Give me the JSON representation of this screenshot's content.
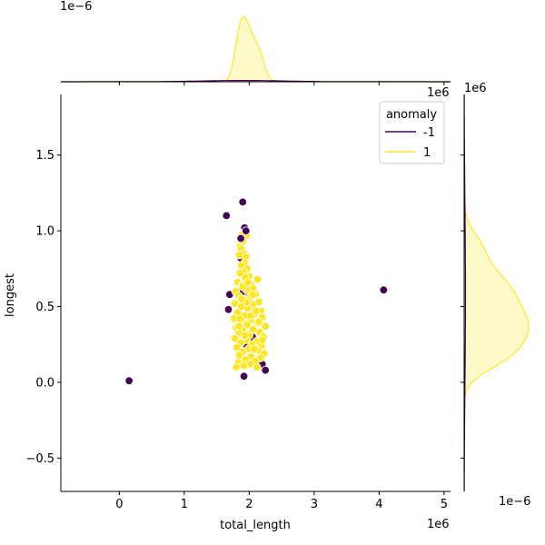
{
  "chart_data": {
    "type": "scatter",
    "subtype": "jointplot",
    "xlabel": "total_length",
    "ylabel": "longest",
    "x_scale_label": "1e6",
    "y_scale_label": "1e6",
    "xlim": [
      -0.9,
      5.1
    ],
    "ylim": [
      -0.72,
      1.9
    ],
    "x_ticks": [
      0,
      1,
      2,
      3,
      4,
      5
    ],
    "y_ticks": [
      -0.5,
      0.0,
      0.5,
      1.0,
      1.5
    ],
    "x_tick_labels": [
      "0",
      "1",
      "2",
      "3",
      "4",
      "5"
    ],
    "y_tick_labels": [
      "−0.5",
      "0.0",
      "0.5",
      "1.0",
      "1.5"
    ],
    "top_marginal_scale_label": "1e−6",
    "right_marginal_scale_label": "1e−6",
    "legend": {
      "title": "anomaly",
      "placement": "top-right",
      "entries": [
        {
          "label": "-1",
          "color": "#440154"
        },
        {
          "label": "1",
          "color": "#fde725"
        }
      ]
    },
    "series": [
      {
        "name": "-1",
        "color": "#440154",
        "points": [
          [
            0.15,
            0.01
          ],
          [
            4.07,
            0.61
          ],
          [
            1.65,
            1.1
          ],
          [
            1.9,
            1.19
          ],
          [
            1.93,
            1.02
          ],
          [
            1.95,
            1.0
          ],
          [
            1.87,
            0.95
          ],
          [
            1.87,
            0.82
          ],
          [
            1.7,
            0.58
          ],
          [
            1.68,
            0.48
          ],
          [
            1.85,
            0.6
          ],
          [
            1.96,
            0.59
          ],
          [
            1.91,
            0.6
          ],
          [
            2.2,
            0.12
          ],
          [
            2.25,
            0.08
          ],
          [
            1.92,
            0.04
          ],
          [
            2.05,
            0.3
          ],
          [
            1.95,
            0.25
          ]
        ]
      },
      {
        "name": "1",
        "color": "#fde725",
        "points": [
          [
            1.88,
            0.97
          ],
          [
            1.96,
            0.97
          ],
          [
            1.86,
            0.9
          ],
          [
            1.9,
            0.93
          ],
          [
            1.88,
            0.88
          ],
          [
            1.92,
            0.85
          ],
          [
            1.95,
            0.83
          ],
          [
            1.85,
            0.84
          ],
          [
            1.93,
            0.79
          ],
          [
            1.88,
            0.77
          ],
          [
            1.97,
            0.75
          ],
          [
            1.91,
            0.73
          ],
          [
            1.86,
            0.72
          ],
          [
            2.0,
            0.7
          ],
          [
            2.13,
            0.68
          ],
          [
            1.94,
            0.69
          ],
          [
            1.82,
            0.66
          ],
          [
            2.02,
            0.65
          ],
          [
            1.89,
            0.64
          ],
          [
            2.06,
            0.62
          ],
          [
            1.79,
            0.6
          ],
          [
            1.96,
            0.61
          ],
          [
            2.1,
            0.58
          ],
          [
            1.84,
            0.57
          ],
          [
            2.01,
            0.56
          ],
          [
            1.92,
            0.55
          ],
          [
            2.15,
            0.53
          ],
          [
            1.78,
            0.52
          ],
          [
            2.05,
            0.51
          ],
          [
            1.88,
            0.5
          ],
          [
            1.98,
            0.49
          ],
          [
            2.18,
            0.47
          ],
          [
            1.82,
            0.46
          ],
          [
            2.08,
            0.45
          ],
          [
            1.93,
            0.44
          ],
          [
            2.2,
            0.43
          ],
          [
            1.77,
            0.42
          ],
          [
            2.02,
            0.41
          ],
          [
            1.89,
            0.4
          ],
          [
            2.13,
            0.39
          ],
          [
            1.97,
            0.38
          ],
          [
            2.25,
            0.37
          ],
          [
            1.8,
            0.36
          ],
          [
            2.07,
            0.35
          ],
          [
            1.91,
            0.34
          ],
          [
            2.16,
            0.33
          ],
          [
            1.84,
            0.32
          ],
          [
            2.0,
            0.31
          ],
          [
            2.22,
            0.3
          ],
          [
            1.78,
            0.29
          ],
          [
            1.95,
            0.28
          ],
          [
            2.11,
            0.27
          ],
          [
            1.87,
            0.26
          ],
          [
            2.04,
            0.25
          ],
          [
            2.19,
            0.24
          ],
          [
            1.81,
            0.23
          ],
          [
            1.99,
            0.22
          ],
          [
            2.14,
            0.21
          ],
          [
            1.9,
            0.2
          ],
          [
            2.23,
            0.19
          ],
          [
            1.85,
            0.18
          ],
          [
            2.03,
            0.17
          ],
          [
            2.17,
            0.16
          ],
          [
            1.94,
            0.15
          ],
          [
            2.09,
            0.14
          ],
          [
            1.83,
            0.13
          ],
          [
            2.01,
            0.12
          ],
          [
            1.92,
            0.11
          ],
          [
            2.12,
            0.1
          ],
          [
            1.8,
            0.1
          ],
          [
            2.06,
            0.35
          ],
          [
            1.86,
            0.42
          ],
          [
            2.1,
            0.47
          ],
          [
            1.96,
            0.53
          ],
          [
            2.05,
            0.58
          ],
          [
            1.9,
            0.63
          ],
          [
            2.15,
            0.4
          ],
          [
            1.84,
            0.37
          ],
          [
            2.2,
            0.28
          ],
          [
            1.98,
            0.66
          ],
          [
            2.08,
            0.22
          ],
          [
            1.93,
            0.31
          ],
          [
            2.02,
            0.44
          ],
          [
            1.88,
            0.55
          ]
        ]
      }
    ],
    "marginal_top": {
      "type": "kde",
      "series": [
        {
          "name": "-1",
          "color": "#440154",
          "peak": 0.02
        },
        {
          "name": "1",
          "color": "#fde725",
          "peak": 1.0
        }
      ]
    },
    "marginal_right": {
      "type": "kde",
      "series": [
        {
          "name": "-1",
          "color": "#440154",
          "peak": 0.02
        },
        {
          "name": "1",
          "color": "#fde725",
          "peak": 1.0
        }
      ]
    }
  }
}
